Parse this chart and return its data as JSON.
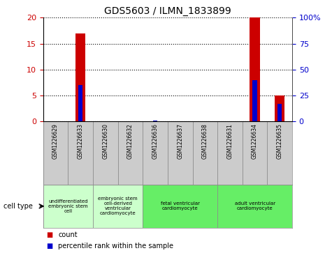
{
  "title": "GDS5603 / ILMN_1833899",
  "samples": [
    "GSM1226629",
    "GSM1226633",
    "GSM1226630",
    "GSM1226632",
    "GSM1226636",
    "GSM1226637",
    "GSM1226638",
    "GSM1226631",
    "GSM1226634",
    "GSM1226635"
  ],
  "counts": [
    0,
    17,
    0,
    0,
    0,
    0,
    0,
    0,
    20,
    5
  ],
  "percentiles": [
    0,
    35,
    0,
    0,
    1,
    0,
    0,
    0,
    40,
    17
  ],
  "ylim_left": [
    0,
    20
  ],
  "ylim_right": [
    0,
    100
  ],
  "yticks_left": [
    0,
    5,
    10,
    15,
    20
  ],
  "yticks_right": [
    0,
    25,
    50,
    75,
    100
  ],
  "ytick_labels_right": [
    "0",
    "25",
    "50",
    "75",
    "100%"
  ],
  "count_color": "#cc0000",
  "percentile_color": "#0000cc",
  "cell_type_groups": [
    {
      "label": "undifferentiated\nembryonic stem\ncell",
      "start": 0,
      "end": 2,
      "color": "#ccffcc"
    },
    {
      "label": "embryonic stem\ncell-derived\nventricular\ncardiomyocyte",
      "start": 2,
      "end": 4,
      "color": "#ccffcc"
    },
    {
      "label": "fetal ventricular\ncardiomyocyte",
      "start": 4,
      "end": 7,
      "color": "#66ee66"
    },
    {
      "label": "adult ventricular\ncardiomyocyte",
      "start": 7,
      "end": 10,
      "color": "#66ee66"
    }
  ],
  "cell_type_label": "cell type",
  "legend_count": "count",
  "legend_percentile": "percentile rank within the sample"
}
